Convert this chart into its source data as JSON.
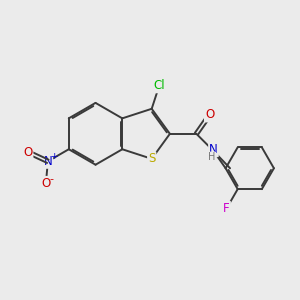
{
  "bg_color": "#ebebeb",
  "bond_color": "#3a3a3a",
  "bond_width": 1.4,
  "dbo": 0.055,
  "atom_colors": {
    "Cl": "#00bb00",
    "S": "#bbaa00",
    "N": "#0000cc",
    "O": "#cc0000",
    "F": "#cc00cc",
    "H": "#777777"
  },
  "fs": 8.5,
  "fs_small": 7.0
}
